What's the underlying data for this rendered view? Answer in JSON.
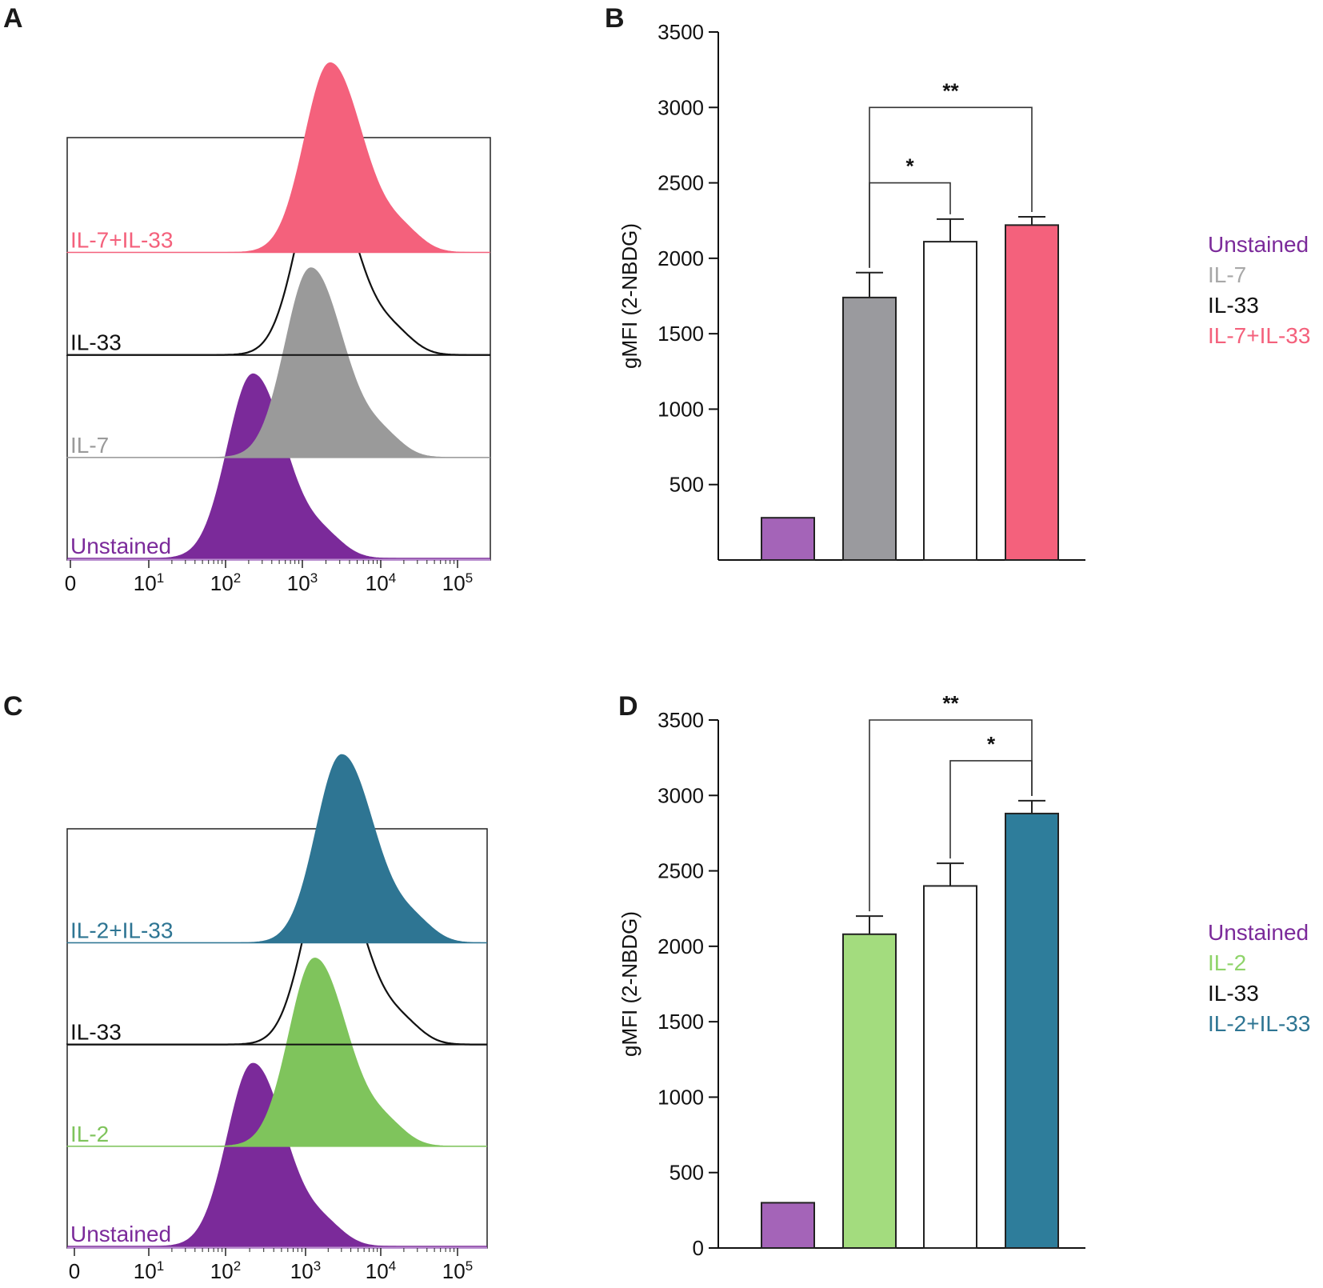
{
  "panels": {
    "A": {
      "letter": "A"
    },
    "B": {
      "letter": "B"
    },
    "C": {
      "letter": "C"
    },
    "D": {
      "letter": "D"
    }
  },
  "histogram_axis": {
    "ticks": [
      {
        "base": "0",
        "exp": ""
      },
      {
        "base": "10",
        "exp": "1"
      },
      {
        "base": "10",
        "exp": "2"
      },
      {
        "base": "10",
        "exp": "3"
      },
      {
        "base": "10",
        "exp": "4"
      },
      {
        "base": "10",
        "exp": "5"
      }
    ]
  },
  "chart_data": [
    {
      "id": "A",
      "type": "histogram-overlay",
      "x_scale": "log (decades 0..10^5)",
      "tracks": [
        {
          "label": "IL-7+IL-33",
          "color": "#f4617c",
          "fill": true,
          "peak_log10": 3.35
        },
        {
          "label": "IL-33",
          "color": "#111111",
          "fill": false,
          "peak_log10": 3.25
        },
        {
          "label": "IL-7",
          "color": "#9a9a9a",
          "fill": true,
          "peak_log10": 3.1
        },
        {
          "label": "Unstained",
          "color": "#7b2a9a",
          "fill": true,
          "peak_log10": 2.35
        }
      ]
    },
    {
      "id": "B",
      "type": "bar",
      "ylabel": "gMFI (2-NBDG)",
      "ylim": [
        0,
        3500
      ],
      "yticks": [
        "500",
        "1000",
        "1500",
        "2000",
        "2500",
        "3000",
        "3500"
      ],
      "categories": [
        "Unstained",
        "IL-7",
        "IL-33",
        "IL-7+IL-33"
      ],
      "values": [
        280,
        1740,
        2110,
        2220
      ],
      "errors": [
        0,
        165,
        150,
        55
      ],
      "colors": [
        "#a464b8",
        "#9a9a9e",
        "#ffffff",
        "#f4617c"
      ],
      "legend": [
        {
          "label": "Unstained",
          "color": "#7b2a9a"
        },
        {
          "label": "IL-7",
          "color": "#a8a8a8"
        },
        {
          "label": "IL-33",
          "color": "#111111"
        },
        {
          "label": "IL-7+IL-33",
          "color": "#f4617c"
        }
      ],
      "significance": [
        {
          "from": 1,
          "to": 3,
          "label": "**",
          "level": 3000
        },
        {
          "from": 1,
          "to": 2,
          "label": "*",
          "level": 2500
        }
      ]
    },
    {
      "id": "C",
      "type": "histogram-overlay",
      "x_scale": "log (decades 0..10^5)",
      "tracks": [
        {
          "label": "IL-2+IL-33",
          "color": "#2e7593",
          "fill": true,
          "peak_log10": 3.5
        },
        {
          "label": "IL-33",
          "color": "#111111",
          "fill": false,
          "peak_log10": 3.35
        },
        {
          "label": "IL-2",
          "color": "#7fc45c",
          "fill": true,
          "peak_log10": 3.15
        },
        {
          "label": "Unstained",
          "color": "#7b2a9a",
          "fill": true,
          "peak_log10": 2.35
        }
      ]
    },
    {
      "id": "D",
      "type": "bar",
      "ylabel": "gMFI (2-NBDG)",
      "ylim": [
        0,
        3500
      ],
      "yticks": [
        "0",
        "500",
        "1000",
        "1500",
        "2000",
        "2500",
        "3000",
        "3500"
      ],
      "categories": [
        "Unstained",
        "IL-2",
        "IL-33",
        "IL-2+IL-33"
      ],
      "values": [
        300,
        2080,
        2400,
        2880
      ],
      "errors": [
        0,
        120,
        150,
        85
      ],
      "colors": [
        "#a464b8",
        "#a3dc7e",
        "#ffffff",
        "#2e7d9b"
      ],
      "legend": [
        {
          "label": "Unstained",
          "color": "#7b2a9a"
        },
        {
          "label": "IL-2",
          "color": "#8fd46a"
        },
        {
          "label": "IL-33",
          "color": "#111111"
        },
        {
          "label": "IL-2+IL-33",
          "color": "#2e7593"
        }
      ],
      "significance": [
        {
          "from": 1,
          "to": 3,
          "label": "**",
          "level": 3500
        },
        {
          "from": 2,
          "to": 3,
          "label": "*",
          "level": 3230
        }
      ]
    }
  ]
}
